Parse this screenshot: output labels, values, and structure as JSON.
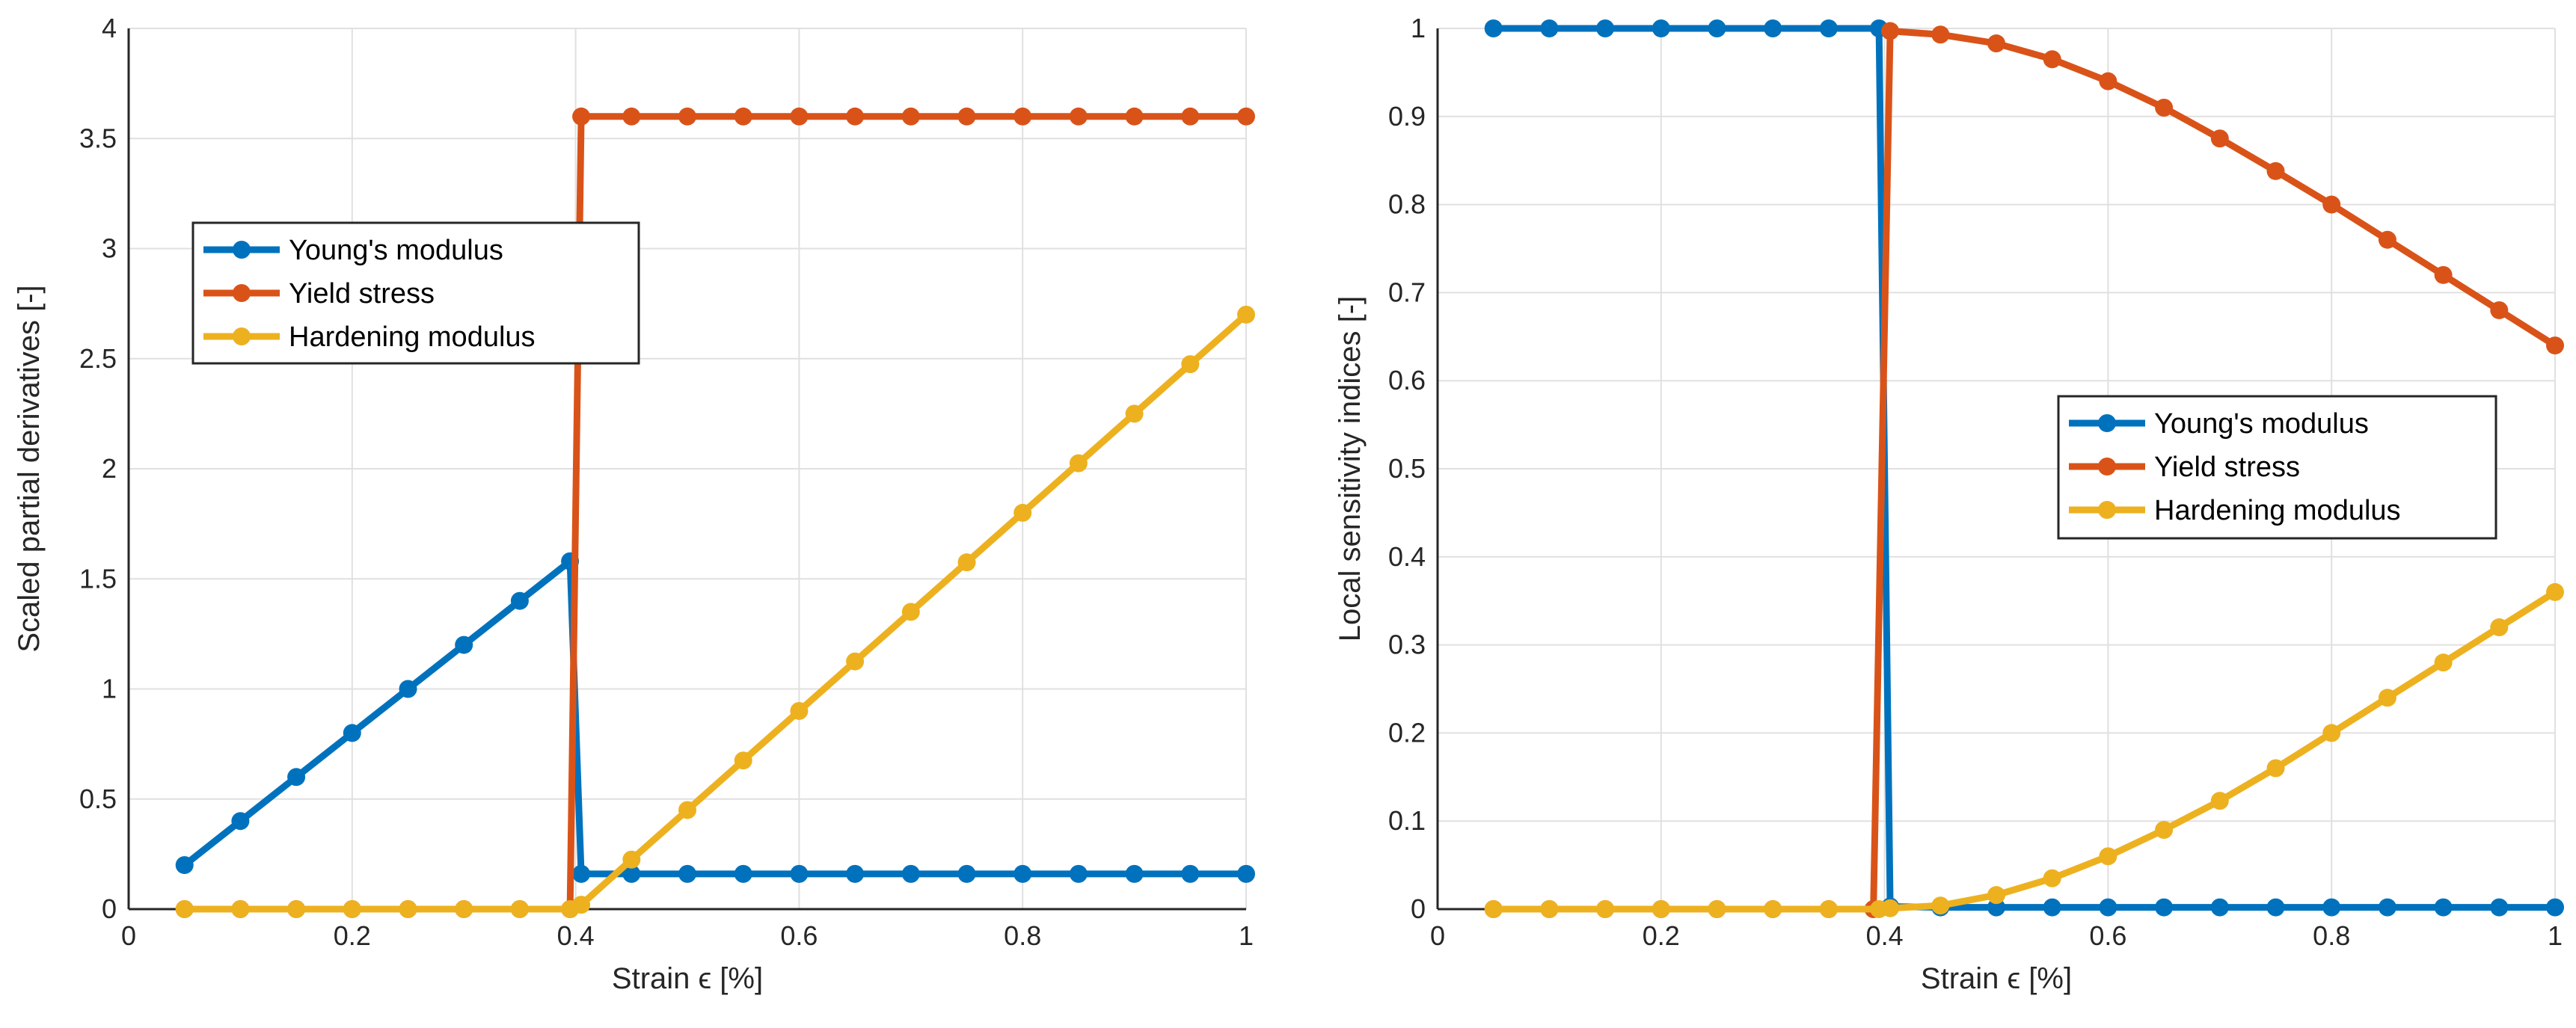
{
  "chart_data": [
    {
      "type": "line",
      "title": "",
      "xlabel": "Strain ϵ [%]",
      "ylabel": "Scaled partial derivatives [-]",
      "xlim": [
        0,
        1
      ],
      "ylim": [
        0,
        4
      ],
      "xticks": [
        "0",
        "0.2",
        "0.4",
        "0.6",
        "0.8",
        "1"
      ],
      "yticks": [
        "0",
        "0.5",
        "1",
        "1.5",
        "2",
        "2.5",
        "3",
        "3.5",
        "4"
      ],
      "grid": true,
      "legend_position": "upper-left",
      "series": [
        {
          "name": "Young's modulus",
          "color": "#0072BD",
          "x": [
            0.05,
            0.1,
            0.15,
            0.2,
            0.25,
            0.3,
            0.35,
            0.395,
            0.405,
            0.45,
            0.5,
            0.55,
            0.6,
            0.65,
            0.7,
            0.75,
            0.8,
            0.85,
            0.9,
            0.95,
            1.0
          ],
          "y": [
            0.2,
            0.4,
            0.6,
            0.8,
            1.0,
            1.2,
            1.4,
            1.58,
            0.16,
            0.16,
            0.16,
            0.16,
            0.16,
            0.16,
            0.16,
            0.16,
            0.16,
            0.16,
            0.16,
            0.16,
            0.16
          ]
        },
        {
          "name": "Yield stress",
          "color": "#D95319",
          "x": [
            0.05,
            0.1,
            0.15,
            0.2,
            0.25,
            0.3,
            0.35,
            0.395,
            0.405,
            0.45,
            0.5,
            0.55,
            0.6,
            0.65,
            0.7,
            0.75,
            0.8,
            0.85,
            0.9,
            0.95,
            1.0
          ],
          "y": [
            0,
            0,
            0,
            0,
            0,
            0,
            0,
            0,
            3.6,
            3.6,
            3.6,
            3.6,
            3.6,
            3.6,
            3.6,
            3.6,
            3.6,
            3.6,
            3.6,
            3.6,
            3.6
          ]
        },
        {
          "name": "Hardening modulus",
          "color": "#EDB120",
          "x": [
            0.05,
            0.1,
            0.15,
            0.2,
            0.25,
            0.3,
            0.35,
            0.395,
            0.405,
            0.45,
            0.5,
            0.55,
            0.6,
            0.65,
            0.7,
            0.75,
            0.8,
            0.85,
            0.9,
            0.95,
            1.0
          ],
          "y": [
            0,
            0,
            0,
            0,
            0,
            0,
            0,
            0,
            0.02,
            0.225,
            0.45,
            0.675,
            0.9,
            1.125,
            1.35,
            1.575,
            1.8,
            2.025,
            2.25,
            2.475,
            2.7
          ]
        }
      ]
    },
    {
      "type": "line",
      "title": "",
      "xlabel": "Strain ϵ [%]",
      "ylabel": "Local sensitivity indices [-]",
      "xlim": [
        0,
        1
      ],
      "ylim": [
        0,
        1
      ],
      "xticks": [
        "0",
        "0.2",
        "0.4",
        "0.6",
        "0.8",
        "1"
      ],
      "yticks": [
        "0",
        "0.1",
        "0.2",
        "0.3",
        "0.4",
        "0.5",
        "0.6",
        "0.7",
        "0.8",
        "0.9",
        "1"
      ],
      "grid": true,
      "legend_position": "right-middle",
      "series": [
        {
          "name": "Young's modulus",
          "color": "#0072BD",
          "x": [
            0.05,
            0.1,
            0.15,
            0.2,
            0.25,
            0.3,
            0.35,
            0.395,
            0.405,
            0.45,
            0.5,
            0.55,
            0.6,
            0.65,
            0.7,
            0.75,
            0.8,
            0.85,
            0.9,
            0.95,
            1.0
          ],
          "y": [
            1,
            1,
            1,
            1,
            1,
            1,
            1,
            1,
            0.003,
            0.002,
            0.002,
            0.002,
            0.002,
            0.002,
            0.002,
            0.002,
            0.002,
            0.002,
            0.002,
            0.002,
            0.002
          ]
        },
        {
          "name": "Yield stress",
          "color": "#D95319",
          "x": [
            0.05,
            0.1,
            0.15,
            0.2,
            0.25,
            0.3,
            0.35,
            0.39,
            0.405,
            0.45,
            0.5,
            0.55,
            0.6,
            0.65,
            0.7,
            0.75,
            0.8,
            0.85,
            0.9,
            0.95,
            1.0
          ],
          "y": [
            0,
            0,
            0,
            0,
            0,
            0,
            0,
            0,
            0.997,
            0.993,
            0.983,
            0.965,
            0.94,
            0.91,
            0.875,
            0.838,
            0.8,
            0.76,
            0.72,
            0.68,
            0.64
          ]
        },
        {
          "name": "Hardening modulus",
          "color": "#EDB120",
          "x": [
            0.05,
            0.1,
            0.15,
            0.2,
            0.25,
            0.3,
            0.35,
            0.395,
            0.405,
            0.45,
            0.5,
            0.55,
            0.6,
            0.65,
            0.7,
            0.75,
            0.8,
            0.85,
            0.9,
            0.95,
            1.0
          ],
          "y": [
            0,
            0,
            0,
            0,
            0,
            0,
            0,
            0,
            0.001,
            0.004,
            0.016,
            0.035,
            0.06,
            0.09,
            0.123,
            0.16,
            0.2,
            0.24,
            0.28,
            0.32,
            0.36
          ]
        }
      ]
    }
  ]
}
